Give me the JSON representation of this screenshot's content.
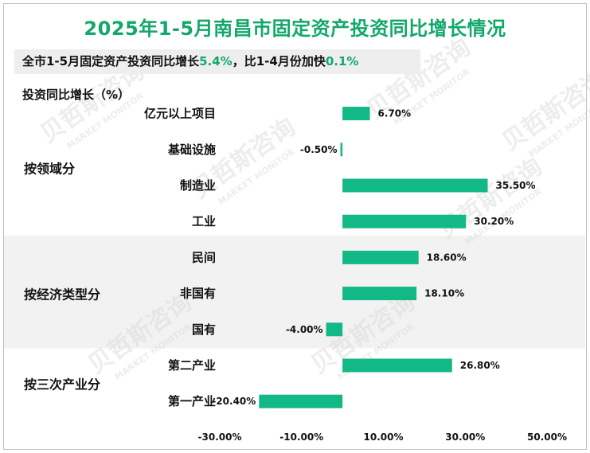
{
  "title": "2025年1-5月南昌市固定资产投资同比增长情况",
  "subtitle": {
    "part1": "全市1-5月固定资产投资同比增长",
    "value1": "5.4%",
    "part2": "，比1-4月份加快",
    "value2": "0.1%"
  },
  "watermark": {
    "cn": "贝哲斯咨询",
    "en": "MARKET MONITOR"
  },
  "colors": {
    "accent": "#12a86a",
    "bar": "#12b886",
    "band": "#f2f2f2"
  },
  "chart_data": {
    "type": "bar",
    "orientation": "horizontal",
    "ylabel": "投资同比增长（%）",
    "xlim": [
      -30,
      50
    ],
    "xticks": [
      "-30.00%",
      "-10.00%",
      "10.00%",
      "30.00%",
      "50.00%"
    ],
    "xtick_values": [
      -30,
      -10,
      10,
      30,
      50
    ],
    "grid": false,
    "groups": [
      {
        "name": "按领域分",
        "shaded": false,
        "items": [
          {
            "category": "亿元以上项目",
            "value": 6.7,
            "label": "6.70%"
          },
          {
            "category": "基础设施",
            "value": -0.5,
            "label": "-0.50%"
          },
          {
            "category": "制造业",
            "value": 35.5,
            "label": "35.50%"
          },
          {
            "category": "工业",
            "value": 30.2,
            "label": "30.20%"
          }
        ]
      },
      {
        "name": "按经济类型分",
        "shaded": true,
        "items": [
          {
            "category": "民间",
            "value": 18.6,
            "label": "18.60%"
          },
          {
            "category": "非国有",
            "value": 18.1,
            "label": "18.10%"
          },
          {
            "category": "国有",
            "value": -4.0,
            "label": "-4.00%"
          }
        ]
      },
      {
        "name": "按三次产业分",
        "shaded": false,
        "items": [
          {
            "category": "第二产业",
            "value": 26.8,
            "label": "26.80%"
          },
          {
            "category": "第一产业",
            "value": -20.4,
            "label": "-20.40%"
          }
        ]
      }
    ]
  }
}
